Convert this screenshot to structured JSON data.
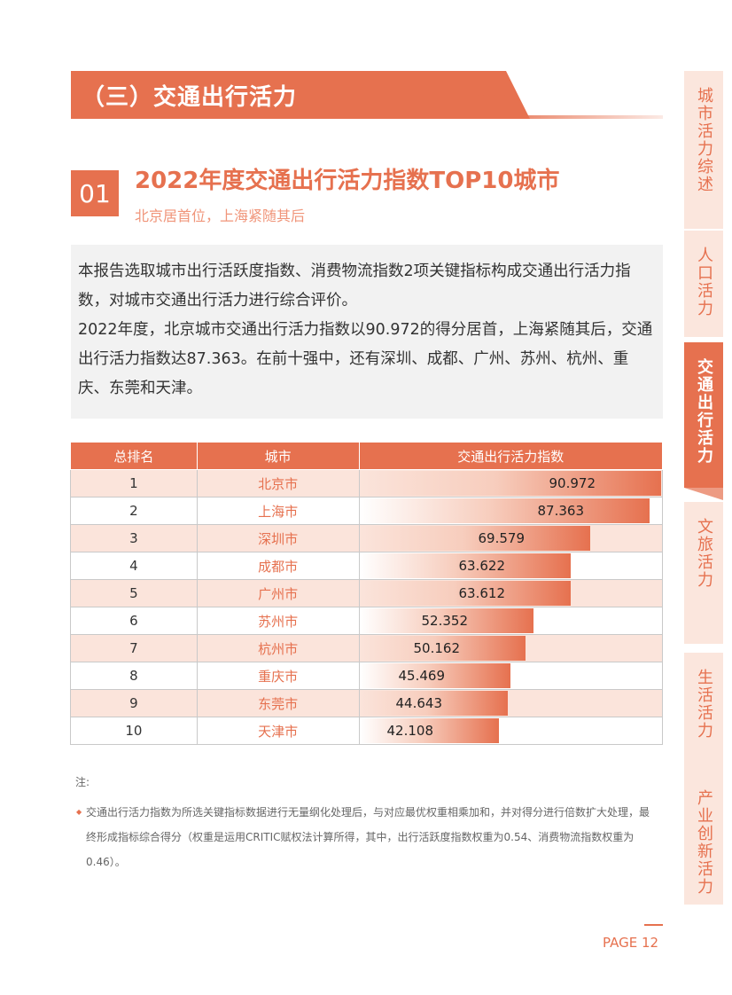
{
  "section": {
    "title": "（三）交通出行活力"
  },
  "sidebar": {
    "tabs": [
      {
        "label": "城市活力综述",
        "active": false
      },
      {
        "label": "人口活力",
        "active": false
      },
      {
        "label": "交通出行活力",
        "active": true
      },
      {
        "label": "文旅活力",
        "active": false
      },
      {
        "label": "生活活力",
        "active": false
      },
      {
        "label": "产业创新活力",
        "active": false
      }
    ]
  },
  "subsection": {
    "number": "01",
    "title": "2022年度交通出行活力指数TOP10城市",
    "subtitle": "北京居首位，上海紧随其后"
  },
  "intro": {
    "para1": "本报告选取城市出行活跃度指数、消费物流指数2项关键指标构成交通出行活力指数，对城市交通出行活力进行综合评价。",
    "para2": "2022年度，北京城市交通出行活力指数以90.972的得分居首，上海紧随其后，交通出行活力指数达87.363。在前十强中，还有深圳、成都、广州、苏州、杭州、重庆、东莞和天津。"
  },
  "table": {
    "headers": [
      "总排名",
      "城市",
      "交通出行活力指数"
    ],
    "max_value": 90.972,
    "rows": [
      {
        "rank": "1",
        "city": "北京市",
        "value": 90.972,
        "value_label": "90.972"
      },
      {
        "rank": "2",
        "city": "上海市",
        "value": 87.363,
        "value_label": "87.363"
      },
      {
        "rank": "3",
        "city": "深圳市",
        "value": 69.579,
        "value_label": "69.579"
      },
      {
        "rank": "4",
        "city": "成都市",
        "value": 63.622,
        "value_label": "63.622"
      },
      {
        "rank": "5",
        "city": "广州市",
        "value": 63.612,
        "value_label": "63.612"
      },
      {
        "rank": "6",
        "city": "苏州市",
        "value": 52.352,
        "value_label": "52.352"
      },
      {
        "rank": "7",
        "city": "杭州市",
        "value": 50.162,
        "value_label": "50.162"
      },
      {
        "rank": "8",
        "city": "重庆市",
        "value": 45.469,
        "value_label": "45.469"
      },
      {
        "rank": "9",
        "city": "东莞市",
        "value": 44.643,
        "value_label": "44.643"
      },
      {
        "rank": "10",
        "city": "天津市",
        "value": 42.108,
        "value_label": "42.108"
      }
    ]
  },
  "notes": {
    "heading": "注:",
    "bullet": "◆",
    "text": "交通出行活力指数为所选关键指标数据进行无量纲化处理后，与对应最优权重相乘加和，并对得分进行倍数扩大处理，最终形成指标综合得分（权重是运用CRITIC赋权法计算所得，其中，出行活跃度指数权重为0.54、消费物流指数权重为0.46）。"
  },
  "footer": {
    "page": "PAGE 12"
  },
  "colors": {
    "accent": "#e6714f",
    "accent_light": "#fbe4db",
    "panel": "#f2f2f2"
  }
}
